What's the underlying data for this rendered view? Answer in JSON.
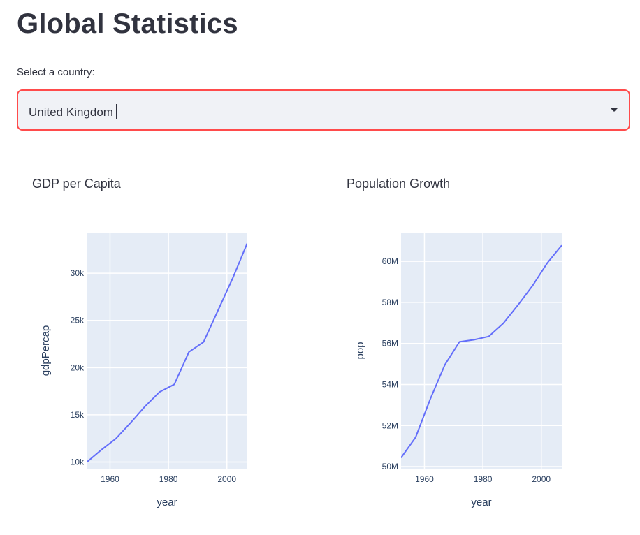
{
  "page": {
    "title": "Global Statistics"
  },
  "country_select": {
    "label": "Select a country:",
    "value": "United Kingdom"
  },
  "colors": {
    "line": "#636efa",
    "plot_bg": "#e5ecf6",
    "select_border": "#ff4b4b",
    "select_bg": "#f0f2f6"
  },
  "chart_data": [
    {
      "type": "line",
      "title": "GDP per Capita",
      "xlabel": "year",
      "ylabel": "gdpPercap",
      "xlim": [
        1952,
        2007
      ],
      "ylim": [
        9300,
        34300
      ],
      "x_ticks": [
        1960,
        1980,
        2000
      ],
      "y_ticks": [
        10000,
        15000,
        20000,
        25000,
        30000
      ],
      "y_tick_labels": [
        "10k",
        "15k",
        "20k",
        "25k",
        "30k"
      ],
      "x": [
        1952,
        1957,
        1962,
        1967,
        1972,
        1977,
        1982,
        1987,
        1992,
        1997,
        2002,
        2007
      ],
      "values": [
        9980,
        11280,
        12480,
        14140,
        15900,
        17430,
        18230,
        21660,
        22710,
        26080,
        29480,
        33200
      ]
    },
    {
      "type": "line",
      "title": "Population Growth",
      "xlabel": "year",
      "ylabel": "pop",
      "xlim": [
        1952,
        2007
      ],
      "ylim": [
        49900000,
        61400000
      ],
      "x_ticks": [
        1960,
        1980,
        2000
      ],
      "y_ticks": [
        50000000,
        52000000,
        54000000,
        56000000,
        58000000,
        60000000
      ],
      "y_tick_labels": [
        "50M",
        "52M",
        "54M",
        "56M",
        "58M",
        "60M"
      ],
      "x": [
        1952,
        1957,
        1962,
        1967,
        1972,
        1977,
        1982,
        1987,
        1992,
        1997,
        2002,
        2007
      ],
      "values": [
        50430000,
        51430000,
        53290000,
        54960000,
        56080000,
        56180000,
        56340000,
        56980000,
        57870000,
        58810000,
        59910000,
        60780000
      ]
    }
  ]
}
